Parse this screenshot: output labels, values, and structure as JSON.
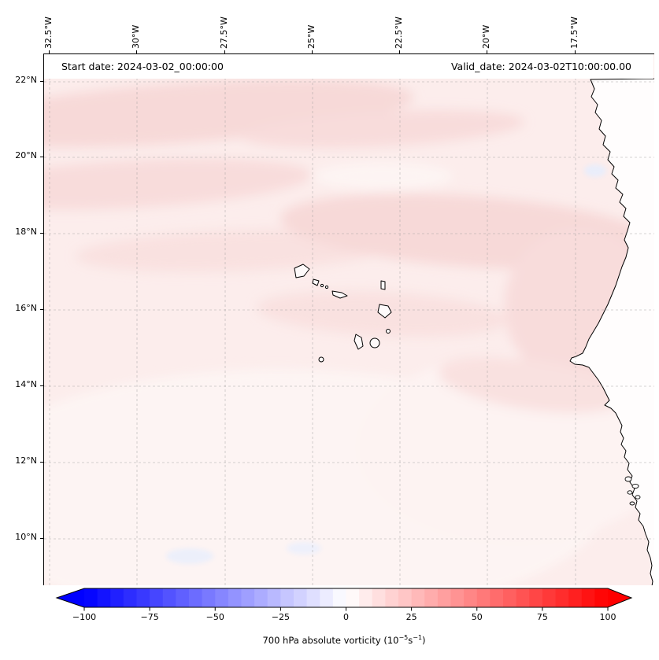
{
  "figure": {
    "start_date_label": "Start date: 2024-03-02_00:00:00",
    "valid_date_label": "Valid_date: 2024-03-02T10:00:00.00"
  },
  "axes": {
    "top_ticks": [
      "32.5°W",
      "30°W",
      "27.5°W",
      "25°W",
      "22.5°W",
      "20°W",
      "17.5°W"
    ],
    "left_ticks": [
      "22°N",
      "20°N",
      "18°N",
      "16°N",
      "14°N",
      "12°N",
      "10°N"
    ]
  },
  "colorbar": {
    "min": -100,
    "max": 100,
    "step": 5,
    "ticks": [
      "−100",
      "−75",
      "−50",
      "−25",
      "0",
      "25",
      "50",
      "75",
      "100"
    ],
    "tick_values": [
      -100,
      -75,
      -50,
      -25,
      0,
      25,
      50,
      75,
      100
    ],
    "colors": {
      "low": "#0000ff",
      "mid": "#ffffff",
      "high": "#ff0000"
    },
    "label_prefix": "700 hPa absolute vorticity (10",
    "label_sup1": "−5",
    "label_mid": "s",
    "label_sup2": "−1",
    "label_suffix": ")"
  },
  "map_palette": {
    "field_base_pink": "#fcedec",
    "field_mid_pink": "#f7d9d8",
    "field_pale_pink": "#fdf4f3",
    "field_light_blue": "#eceffa",
    "land": "#fffdfd",
    "coastline": "#000000",
    "gridline": "#9a9a9a"
  },
  "chart_data": {
    "type": "heatmap",
    "title": "",
    "description": "Filled-contour map of 700 hPa absolute vorticity over the eastern tropical Atlantic near Cape Verde and the West African coast; field is weakly positive (light pink) almost everywhere with a few faint negative (light blue) patches.",
    "x_lon_deg": [
      -32.5,
      -30,
      -27.5,
      -25,
      -22.5,
      -20,
      -17.5
    ],
    "y_lat_deg": [
      22,
      20,
      18,
      16,
      14,
      12,
      10
    ],
    "values_1e5_per_s": [
      [
        8,
        10,
        12,
        10,
        8,
        6,
        6
      ],
      [
        6,
        8,
        10,
        12,
        10,
        8,
        7
      ],
      [
        8,
        10,
        10,
        12,
        14,
        12,
        10
      ],
      [
        6,
        8,
        8,
        10,
        12,
        14,
        10
      ],
      [
        5,
        6,
        6,
        8,
        8,
        6,
        5
      ],
      [
        4,
        5,
        5,
        5,
        5,
        4,
        4
      ],
      [
        3,
        4,
        -2,
        3,
        3,
        3,
        4
      ]
    ],
    "colorbar_label": "700 hPa absolute vorticity (10⁻⁵s⁻¹)",
    "colorbar_range": [
      -100,
      100
    ],
    "colorbar_ticks": [
      -100,
      -75,
      -50,
      -25,
      0,
      25,
      50,
      75,
      100
    ],
    "colormap": "blue-white-red (bwr), discretized every 5, extended triangles both ends",
    "grid": "dashed",
    "annotations": [
      "Start date: 2024-03-02_00:00:00",
      "Valid_date: 2024-03-02T10:00:00.00"
    ]
  }
}
